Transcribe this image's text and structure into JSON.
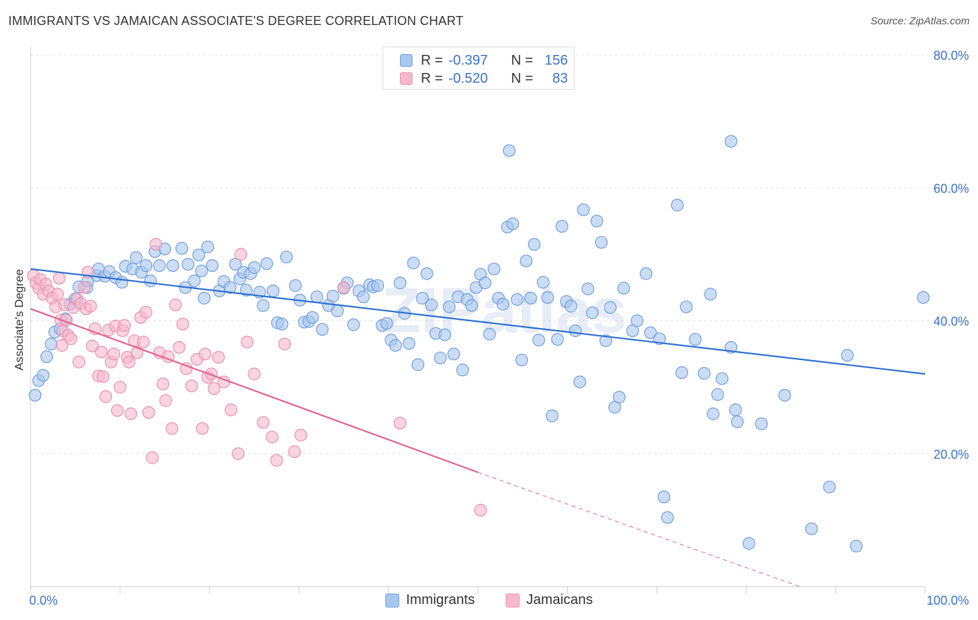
{
  "title": "IMMIGRANTS VS JAMAICAN ASSOCIATE'S DEGREE CORRELATION CHART",
  "source": "Source: ZipAtlas.com",
  "watermark": "ZIPatlas",
  "legend": {
    "rows": [
      {
        "r_label": "R =",
        "r_value": "-0.397",
        "n_label": "N =",
        "n_value": "156"
      },
      {
        "r_label": "R =",
        "r_value": "-0.520",
        "n_label": "N =",
        "n_value": "83"
      }
    ]
  },
  "bottom_legend": [
    {
      "label": "Immigrants"
    },
    {
      "label": "Jamaicans"
    }
  ],
  "colors": {
    "immigrants_fill": "#a9c7ee",
    "immigrants_stroke": "#6f9fdb",
    "immigrants_line": "#2f6fd0",
    "jamaicans_fill": "#f6b8cc",
    "jamaicans_stroke": "#e990ae",
    "jamaicans_line": "#e0638f",
    "tick_label": "#3a72c9",
    "grid": "#e3e3e3"
  },
  "chart_data": {
    "type": "scatter",
    "title": "IMMIGRANTS VS JAMAICAN ASSOCIATE'S DEGREE CORRELATION CHART",
    "xlabel": "",
    "ylabel": "Associate's Degree",
    "xlim": [
      0,
      100
    ],
    "ylim": [
      0,
      80
    ],
    "x_tick_labels": [
      "0.0%",
      "100.0%"
    ],
    "y_ticks": [
      20,
      40,
      60,
      80
    ],
    "y_tick_labels": [
      "20.0%",
      "40.0%",
      "60.0%",
      "80.0%"
    ],
    "grid": true,
    "series": [
      {
        "name": "Immigrants",
        "r": -0.397,
        "n": 156,
        "trend": {
          "x0": 0,
          "y0": 47.8,
          "x1": 100,
          "y1": 32.0,
          "dashed_from": null
        },
        "points": [
          [
            0.5,
            28.8
          ],
          [
            0.9,
            31.0
          ],
          [
            1.4,
            31.8
          ],
          [
            1.8,
            34.6
          ],
          [
            2.3,
            36.5
          ],
          [
            2.7,
            38.3
          ],
          [
            3.3,
            38.8
          ],
          [
            3.9,
            40.3
          ],
          [
            4.4,
            42.5
          ],
          [
            5.0,
            43.3
          ],
          [
            5.4,
            45.1
          ],
          [
            6.3,
            45.0
          ],
          [
            6.4,
            46.0
          ],
          [
            7.4,
            46.8
          ],
          [
            7.6,
            47.8
          ],
          [
            8.3,
            46.7
          ],
          [
            8.8,
            47.4
          ],
          [
            9.5,
            46.5
          ],
          [
            10.2,
            45.8
          ],
          [
            10.6,
            48.2
          ],
          [
            11.4,
            47.8
          ],
          [
            11.8,
            49.5
          ],
          [
            12.4,
            47.3
          ],
          [
            12.9,
            48.3
          ],
          [
            13.4,
            46.0
          ],
          [
            13.9,
            50.4
          ],
          [
            14.4,
            48.3
          ],
          [
            15.0,
            50.8
          ],
          [
            15.9,
            48.3
          ],
          [
            16.9,
            50.9
          ],
          [
            17.3,
            45.0
          ],
          [
            17.6,
            48.5
          ],
          [
            18.3,
            46.0
          ],
          [
            18.8,
            49.9
          ],
          [
            19.1,
            47.5
          ],
          [
            19.4,
            43.4
          ],
          [
            19.8,
            51.1
          ],
          [
            20.3,
            48.3
          ],
          [
            21.1,
            44.5
          ],
          [
            21.6,
            45.9
          ],
          [
            22.3,
            45.0
          ],
          [
            22.9,
            48.5
          ],
          [
            23.4,
            46.3
          ],
          [
            23.8,
            47.3
          ],
          [
            24.1,
            44.6
          ],
          [
            24.6,
            47.1
          ],
          [
            25.0,
            48.0
          ],
          [
            25.6,
            44.3
          ],
          [
            26.0,
            42.3
          ],
          [
            26.4,
            48.6
          ],
          [
            27.1,
            44.5
          ],
          [
            27.6,
            39.7
          ],
          [
            28.1,
            39.5
          ],
          [
            28.6,
            49.6
          ],
          [
            29.6,
            45.3
          ],
          [
            30.1,
            43.1
          ],
          [
            30.6,
            39.8
          ],
          [
            31.1,
            39.9
          ],
          [
            31.5,
            40.5
          ],
          [
            32.0,
            43.6
          ],
          [
            32.6,
            38.7
          ],
          [
            33.3,
            42.3
          ],
          [
            33.8,
            43.7
          ],
          [
            34.3,
            41.5
          ],
          [
            35.0,
            44.9
          ],
          [
            35.4,
            45.7
          ],
          [
            36.1,
            39.4
          ],
          [
            36.7,
            44.5
          ],
          [
            37.2,
            43.6
          ],
          [
            37.9,
            45.4
          ],
          [
            38.3,
            45.1
          ],
          [
            38.8,
            45.3
          ],
          [
            39.3,
            39.3
          ],
          [
            39.8,
            39.6
          ],
          [
            40.3,
            37.1
          ],
          [
            40.8,
            36.3
          ],
          [
            41.3,
            45.7
          ],
          [
            41.8,
            41.1
          ],
          [
            42.3,
            36.6
          ],
          [
            42.8,
            48.7
          ],
          [
            43.3,
            33.4
          ],
          [
            43.8,
            43.4
          ],
          [
            44.3,
            47.1
          ],
          [
            44.8,
            42.4
          ],
          [
            45.3,
            38.1
          ],
          [
            45.8,
            34.4
          ],
          [
            46.3,
            37.9
          ],
          [
            46.8,
            42.1
          ],
          [
            47.3,
            35.0
          ],
          [
            47.8,
            43.6
          ],
          [
            48.3,
            32.6
          ],
          [
            48.8,
            43.2
          ],
          [
            49.3,
            42.3
          ],
          [
            49.8,
            45.0
          ],
          [
            50.3,
            47.0
          ],
          [
            50.8,
            45.7
          ],
          [
            51.3,
            38.0
          ],
          [
            51.8,
            47.8
          ],
          [
            52.3,
            43.4
          ],
          [
            52.8,
            42.5
          ],
          [
            53.3,
            54.1
          ],
          [
            53.9,
            54.6
          ],
          [
            54.4,
            43.2
          ],
          [
            54.9,
            34.1
          ],
          [
            55.4,
            49.0
          ],
          [
            55.9,
            43.4
          ],
          [
            56.3,
            51.5
          ],
          [
            56.8,
            37.1
          ],
          [
            57.3,
            45.8
          ],
          [
            57.8,
            43.5
          ],
          [
            58.3,
            25.7
          ],
          [
            58.9,
            37.2
          ],
          [
            59.4,
            54.2
          ],
          [
            59.9,
            42.9
          ],
          [
            60.4,
            42.2
          ],
          [
            60.9,
            38.5
          ],
          [
            61.4,
            30.8
          ],
          [
            61.8,
            56.7
          ],
          [
            62.3,
            44.8
          ],
          [
            62.8,
            41.2
          ],
          [
            63.3,
            55.0
          ],
          [
            63.8,
            51.8
          ],
          [
            64.3,
            37.0
          ],
          [
            64.8,
            42.0
          ],
          [
            65.3,
            27.0
          ],
          [
            65.8,
            28.5
          ],
          [
            66.3,
            44.9
          ],
          [
            67.3,
            38.5
          ],
          [
            67.8,
            40.0
          ],
          [
            68.8,
            47.1
          ],
          [
            69.3,
            38.2
          ],
          [
            70.3,
            37.3
          ],
          [
            70.8,
            13.5
          ],
          [
            71.2,
            10.4
          ],
          [
            72.3,
            57.4
          ],
          [
            72.8,
            32.2
          ],
          [
            73.3,
            42.1
          ],
          [
            74.3,
            37.2
          ],
          [
            75.3,
            32.1
          ],
          [
            76.3,
            26.0
          ],
          [
            76.8,
            28.9
          ],
          [
            77.3,
            31.3
          ],
          [
            78.3,
            36.0
          ],
          [
            78.8,
            26.6
          ],
          [
            76.0,
            44.0
          ],
          [
            53.5,
            65.6
          ],
          [
            79.0,
            24.8
          ],
          [
            80.3,
            6.5
          ],
          [
            81.7,
            24.5
          ],
          [
            78.3,
            67.0
          ],
          [
            84.3,
            28.8
          ],
          [
            87.3,
            8.7
          ],
          [
            89.3,
            15.0
          ],
          [
            91.3,
            34.8
          ],
          [
            92.3,
            6.1
          ],
          [
            99.8,
            43.5
          ]
        ]
      },
      {
        "name": "Jamaicans",
        "r": -0.52,
        "n": 83,
        "trend": {
          "x0": 0,
          "y0": 41.8,
          "x1": 50,
          "y1": 17.2,
          "dashed_from": 50,
          "x2": 86,
          "y2": 0
        },
        "points": [
          [
            0.3,
            46.8
          ],
          [
            0.6,
            45.7
          ],
          [
            0.9,
            44.9
          ],
          [
            1.1,
            46.2
          ],
          [
            1.4,
            44.0
          ],
          [
            1.7,
            45.5
          ],
          [
            2.0,
            44.5
          ],
          [
            2.4,
            43.4
          ],
          [
            2.8,
            42.1
          ],
          [
            3.0,
            44.0
          ],
          [
            3.2,
            46.4
          ],
          [
            3.4,
            40.1
          ],
          [
            3.5,
            36.3
          ],
          [
            3.6,
            38.5
          ],
          [
            3.8,
            42.4
          ],
          [
            4.0,
            40.1
          ],
          [
            4.2,
            37.8
          ],
          [
            4.5,
            37.3
          ],
          [
            4.8,
            42.0
          ],
          [
            5.2,
            43.3
          ],
          [
            5.4,
            33.8
          ],
          [
            5.6,
            42.6
          ],
          [
            6.0,
            45.0
          ],
          [
            6.2,
            41.8
          ],
          [
            6.4,
            47.3
          ],
          [
            6.7,
            42.2
          ],
          [
            6.9,
            36.2
          ],
          [
            7.2,
            38.8
          ],
          [
            7.6,
            31.7
          ],
          [
            7.9,
            35.3
          ],
          [
            8.1,
            31.6
          ],
          [
            8.4,
            28.6
          ],
          [
            8.7,
            38.6
          ],
          [
            9.0,
            33.8
          ],
          [
            9.3,
            35.0
          ],
          [
            9.5,
            39.2
          ],
          [
            9.7,
            26.5
          ],
          [
            10.0,
            30.0
          ],
          [
            10.3,
            38.5
          ],
          [
            10.5,
            39.3
          ],
          [
            10.8,
            34.5
          ],
          [
            11.0,
            33.8
          ],
          [
            11.2,
            26.0
          ],
          [
            11.6,
            37.0
          ],
          [
            11.9,
            35.2
          ],
          [
            12.3,
            40.5
          ],
          [
            12.6,
            36.8
          ],
          [
            12.9,
            41.3
          ],
          [
            13.2,
            26.2
          ],
          [
            13.6,
            19.4
          ],
          [
            14.0,
            51.5
          ],
          [
            14.4,
            35.2
          ],
          [
            14.8,
            30.5
          ],
          [
            15.1,
            28.0
          ],
          [
            15.4,
            34.6
          ],
          [
            15.8,
            23.8
          ],
          [
            16.2,
            42.4
          ],
          [
            16.6,
            36.0
          ],
          [
            17.0,
            39.5
          ],
          [
            17.4,
            32.8
          ],
          [
            18.0,
            30.2
          ],
          [
            18.6,
            34.2
          ],
          [
            19.2,
            23.8
          ],
          [
            19.5,
            35.0
          ],
          [
            19.8,
            31.5
          ],
          [
            20.2,
            32.0
          ],
          [
            20.5,
            29.8
          ],
          [
            21.0,
            34.5
          ],
          [
            21.6,
            30.8
          ],
          [
            22.4,
            26.6
          ],
          [
            23.2,
            20.0
          ],
          [
            23.5,
            50.0
          ],
          [
            24.2,
            36.8
          ],
          [
            25.0,
            32.0
          ],
          [
            26.0,
            24.7
          ],
          [
            27.0,
            22.5
          ],
          [
            27.5,
            19.0
          ],
          [
            28.4,
            36.5
          ],
          [
            29.5,
            20.3
          ],
          [
            30.2,
            22.8
          ],
          [
            35.0,
            45.0
          ],
          [
            41.3,
            24.6
          ],
          [
            50.3,
            11.5
          ]
        ]
      }
    ]
  }
}
